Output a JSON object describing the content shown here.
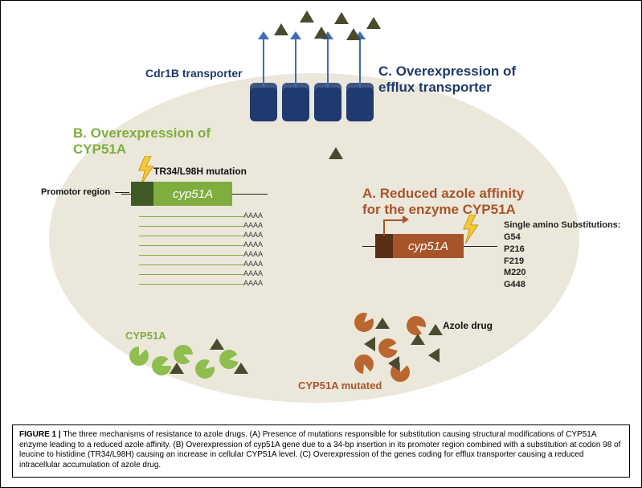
{
  "figure": {
    "label": "FIGURE 1 |",
    "caption": "The three mechanisms of resistance to azole drugs. (A) Presence of mutations responsible for substitution causing structural modifications of CYP51A enzyme leading to a reduced azole affinity. (B) Overexpression of cyp51A gene due to a 34-bp insertion in its promoter region combined with a substitution at codon 98 of leucine to histidine (TR34/L98H) causing an increase in cellular CYP51A level. (C) Overexpression of the genes coding for efflux transporter causing a reduced intracellular accumulation of azole drug."
  },
  "colors": {
    "cell_bg": "#ebe7da",
    "green": "#7fae3f",
    "dark_green": "#3f5a25",
    "brown": "#a8542a",
    "dark_brown": "#5a2f18",
    "navy": "#1e3a6e",
    "blue_arrow": "#3b6fb3",
    "triangle": "#4a4a2f",
    "lightning": "#f4c934"
  },
  "sectionC": {
    "title_line1": "C. Overexpression of",
    "title_line2": "efflux transporter",
    "title_color": "#1e3a6e",
    "title_fontsize": 17,
    "transporter_label": "Cdr1B transporter",
    "transporter_label_color": "#1e3a6e",
    "transporter_count": 4,
    "transporter_color": "#1e3a6e",
    "arrow_color": "#3b6fb3",
    "exported_triangles": 6
  },
  "sectionB": {
    "title_line1": "B. Overexpression of",
    "title_line2": "CYP51A",
    "title_color": "#7fae3f",
    "title_fontsize": 17,
    "mutation_label": "TR34/L98H mutation",
    "promoter_label": "Promotor region",
    "gene_body_label": "cyp51A",
    "gene_body_color": "#7fae3f",
    "promoter_color": "#3f5a25",
    "transcript_count": 8,
    "transcript_tail": "AAAA",
    "enzyme_label": "CYP51A",
    "enzyme_color": "#8fbe4f"
  },
  "sectionA": {
    "title_line1": "A. Reduced azole affinity",
    "title_line2": "for the enzyme CYP51A",
    "title_color": "#a8542a",
    "title_fontsize": 17,
    "gene_body_label": "cyp51A",
    "gene_body_color": "#a8542a",
    "promoter_color": "#5a2f18",
    "sub_header": "Single amino Substitutions:",
    "substitutions": [
      "G54",
      "P216",
      "F219",
      "M220",
      "G448"
    ],
    "mutated_label": "CYP51A mutated",
    "mutated_color": "#b9662f",
    "azole_label": "Azole drug"
  },
  "shapes": {
    "triangle_color": "#4a4a2f",
    "lightning_color": "#f4c934"
  }
}
